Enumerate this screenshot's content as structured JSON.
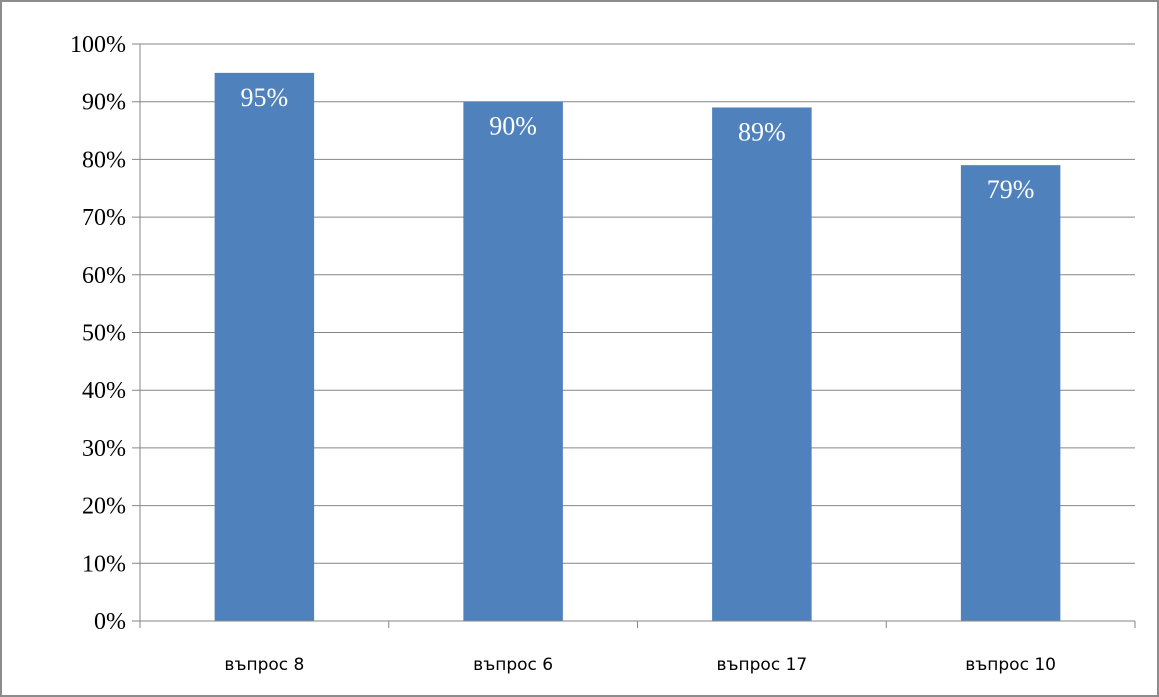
{
  "chart_data": {
    "type": "bar",
    "title": "",
    "xlabel": "",
    "ylabel": "",
    "categories": [
      "въпрос 8",
      "въпрос 6",
      "въпрос 17",
      "въпрос 10"
    ],
    "values": [
      95,
      90,
      89,
      79
    ],
    "data_labels": [
      "95%",
      "90%",
      "89%",
      "79%"
    ],
    "ylim": [
      0,
      100
    ],
    "y_ticks": [
      0,
      10,
      20,
      30,
      40,
      50,
      60,
      70,
      80,
      90,
      100
    ],
    "y_tick_labels": [
      "0%",
      "10%",
      "20%",
      "30%",
      "40%",
      "50%",
      "60%",
      "70%",
      "80%",
      "90%",
      "100%"
    ],
    "grid": true,
    "legend": "none",
    "bar_color": "#4f81bd",
    "grid_color": "#868686"
  }
}
